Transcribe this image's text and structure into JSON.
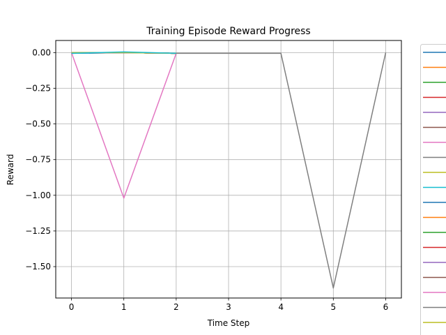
{
  "chart_data": {
    "type": "line",
    "title": "Training Episode Reward Progress",
    "xlabel": "Time Step",
    "ylabel": "Reward",
    "xlim": [
      -0.3,
      6.3
    ],
    "ylim": [
      -1.72,
      0.085
    ],
    "xticks": [
      0,
      1,
      2,
      3,
      4,
      5,
      6
    ],
    "xtick_labels": [
      "0",
      "1",
      "2",
      "3",
      "4",
      "5",
      "6"
    ],
    "yticks": [
      0.0,
      -0.25,
      -0.5,
      -0.75,
      -1.0,
      -1.25,
      -1.5
    ],
    "ytick_labels": [
      "0.00",
      "−0.25",
      "−0.50",
      "−0.75",
      "−1.00",
      "−1.25",
      "−1.50"
    ],
    "grid": true,
    "legend": "outside-right",
    "series": [
      {
        "color": "#1f77b4",
        "x": [
          0,
          1,
          2
        ],
        "y": [
          -0.005,
          0.0,
          -0.005
        ]
      },
      {
        "color": "#ff7f0e",
        "x": [
          0,
          1,
          2
        ],
        "y": [
          0.0,
          0.0,
          -0.005
        ]
      },
      {
        "color": "#2ca02c",
        "x": [
          0,
          1,
          2
        ],
        "y": [
          0.0,
          0.0,
          -0.005
        ]
      },
      {
        "color": "#d62728",
        "x": [
          0,
          1,
          2
        ],
        "y": [
          0.0,
          0.0,
          -0.005
        ]
      },
      {
        "color": "#9467bd",
        "x": [
          0,
          1,
          2
        ],
        "y": [
          0.0,
          0.0,
          -0.005
        ]
      },
      {
        "color": "#8c564b",
        "x": [
          0,
          1,
          2
        ],
        "y": [
          0.0,
          0.0,
          -0.005
        ]
      },
      {
        "color": "#e377c2",
        "x": [
          0,
          1,
          2
        ],
        "y": [
          0.0,
          -1.02,
          -0.005
        ]
      },
      {
        "color": "#7f7f7f",
        "x": [
          0,
          1,
          2,
          3,
          4,
          5,
          6
        ],
        "y": [
          0.0,
          0.0,
          -0.005,
          -0.005,
          -0.005,
          -1.65,
          0.0
        ]
      },
      {
        "color": "#bcbd22",
        "x": [
          0,
          1,
          2
        ],
        "y": [
          0.0,
          0.0,
          -0.005
        ]
      },
      {
        "color": "#17becf",
        "x": [
          0,
          1,
          2
        ],
        "y": [
          0.0,
          0.0,
          -0.005
        ]
      },
      {
        "color": "#1f77b4",
        "x": [
          0,
          1,
          2
        ],
        "y": [
          -0.005,
          0.0,
          -0.005
        ]
      },
      {
        "color": "#ff7f0e",
        "x": [
          0,
          1,
          2
        ],
        "y": [
          0.0,
          0.0,
          -0.005
        ]
      },
      {
        "color": "#2ca02c",
        "x": [
          0,
          1,
          2
        ],
        "y": [
          0.0,
          0.0,
          -0.005
        ]
      },
      {
        "color": "#d62728",
        "x": [
          0,
          1,
          2
        ],
        "y": [
          0.0,
          0.0,
          -0.005
        ]
      },
      {
        "color": "#9467bd",
        "x": [
          0,
          1,
          2
        ],
        "y": [
          0.0,
          0.0,
          -0.005
        ]
      },
      {
        "color": "#8c564b",
        "x": [
          0,
          1,
          2
        ],
        "y": [
          0.0,
          0.0,
          -0.005
        ]
      },
      {
        "color": "#e377c2",
        "x": [
          0,
          1,
          2
        ],
        "y": [
          0.0,
          0.0,
          -0.005
        ]
      },
      {
        "color": "#7f7f7f",
        "x": [
          0,
          1,
          2
        ],
        "y": [
          0.0,
          0.0,
          -0.005
        ]
      },
      {
        "color": "#bcbd22",
        "x": [
          0,
          1,
          2
        ],
        "y": [
          0.0,
          0.0,
          -0.005
        ]
      },
      {
        "color": "#17becf",
        "x": [
          0,
          1,
          2
        ],
        "y": [
          -0.005,
          0.005,
          -0.005
        ]
      }
    ]
  }
}
